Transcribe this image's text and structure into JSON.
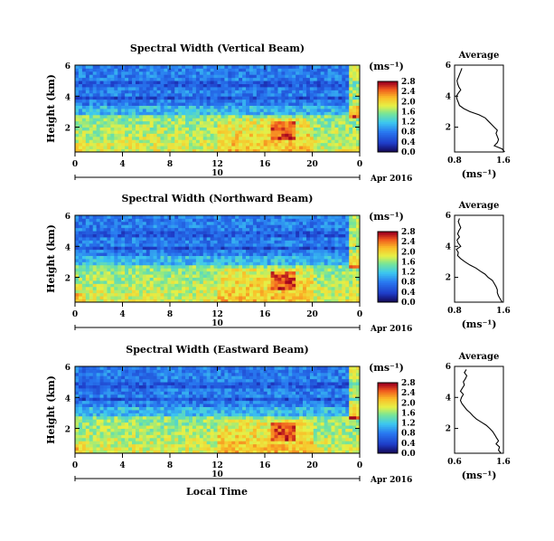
{
  "figure": {
    "common_xlabel": "Local Time",
    "date_label": "Apr 2016"
  },
  "chart_data": [
    {
      "type": "heatmap",
      "title": "Spectral Width (Vertical Beam)",
      "ylabel": "Height (km)",
      "xlabel": "",
      "x_range": [
        0,
        24
      ],
      "x_ticks": [
        "0",
        "4",
        "8",
        "12",
        "16",
        "20",
        "0"
      ],
      "day_label": "10",
      "y_range": [
        0.4,
        6.0
      ],
      "y_ticks": [
        "6",
        "4",
        "2"
      ],
      "colorbar": {
        "unit": "(ms⁻¹)",
        "range": [
          0.0,
          2.8
        ],
        "ticks": [
          "2.8",
          "2.4",
          "2.0",
          "1.6",
          "1.2",
          "0.8",
          "0.4",
          "0.0"
        ]
      },
      "average_profile": {
        "title": "Average",
        "xlabel": "(ms⁻¹)",
        "x_range": [
          0.8,
          1.6
        ],
        "x_ticks": [
          "0.8",
          "1.6"
        ],
        "y_ticks": [
          "6",
          "4",
          "2"
        ],
        "height_km": [
          0.4,
          0.6,
          0.8,
          1.0,
          1.2,
          1.4,
          1.6,
          1.8,
          2.0,
          2.2,
          2.4,
          2.6,
          2.8,
          3.0,
          3.2,
          3.4,
          3.6,
          3.8,
          4.0,
          4.2,
          4.4,
          4.6,
          4.8,
          5.0,
          5.2,
          5.4,
          5.6,
          5.8
        ],
        "width": [
          1.62,
          1.58,
          1.45,
          1.5,
          1.52,
          1.5,
          1.48,
          1.5,
          1.45,
          1.4,
          1.35,
          1.3,
          1.2,
          1.05,
          0.95,
          0.88,
          0.86,
          0.84,
          0.83,
          0.86,
          0.9,
          0.87,
          0.85,
          0.84,
          0.86,
          0.88,
          0.9,
          0.92
        ]
      }
    },
    {
      "type": "heatmap",
      "title": "Spectral Width (Northward Beam)",
      "ylabel": "Height (km)",
      "xlabel": "",
      "x_range": [
        0,
        24
      ],
      "x_ticks": [
        "0",
        "4",
        "8",
        "12",
        "16",
        "20",
        "0"
      ],
      "day_label": "10",
      "y_range": [
        0.4,
        6.0
      ],
      "y_ticks": [
        "6",
        "4",
        "2"
      ],
      "colorbar": {
        "unit": "(ms⁻¹)",
        "range": [
          0.0,
          2.8
        ],
        "ticks": [
          "2.8",
          "2.4",
          "2.0",
          "1.6",
          "1.2",
          "0.8",
          "0.4",
          "0.0"
        ]
      },
      "average_profile": {
        "title": "Average",
        "xlabel": "(ms⁻¹)",
        "x_range": [
          0.8,
          1.6
        ],
        "x_ticks": [
          "0.8",
          "1.6"
        ],
        "y_ticks": [
          "6",
          "4",
          "2"
        ],
        "height_km": [
          0.4,
          0.6,
          0.8,
          1.0,
          1.2,
          1.4,
          1.6,
          1.8,
          2.0,
          2.2,
          2.4,
          2.6,
          2.8,
          3.0,
          3.2,
          3.4,
          3.6,
          3.8,
          4.0,
          4.2,
          4.4,
          4.6,
          4.8,
          5.0,
          5.2,
          5.4,
          5.6,
          5.8
        ],
        "width": [
          1.58,
          1.55,
          1.52,
          1.5,
          1.5,
          1.48,
          1.45,
          1.42,
          1.35,
          1.3,
          1.22,
          1.15,
          1.05,
          0.97,
          0.9,
          0.85,
          0.86,
          0.83,
          0.9,
          0.86,
          0.84,
          0.88,
          0.85,
          0.87,
          0.9,
          0.88,
          0.86,
          0.88
        ]
      }
    },
    {
      "type": "heatmap",
      "title": "Spectral Width (Eastward Beam)",
      "ylabel": "Height (km)",
      "xlabel": "Local Time",
      "x_range": [
        0,
        24
      ],
      "x_ticks": [
        "0",
        "4",
        "8",
        "12",
        "16",
        "20",
        "0"
      ],
      "day_label": "10",
      "y_range": [
        0.4,
        6.0
      ],
      "y_ticks": [
        "6",
        "4",
        "2"
      ],
      "colorbar": {
        "unit": "(ms⁻¹)",
        "range": [
          0.0,
          2.8
        ],
        "ticks": [
          "2.8",
          "2.4",
          "2.0",
          "1.6",
          "1.2",
          "0.8",
          "0.4",
          "0.0"
        ]
      },
      "average_profile": {
        "title": "Average",
        "xlabel": "(ms⁻¹)",
        "x_range": [
          0.6,
          1.6
        ],
        "x_ticks": [
          "0.6",
          "1.6"
        ],
        "y_ticks": [
          "6",
          "4",
          "2"
        ],
        "height_km": [
          0.4,
          0.6,
          0.8,
          1.0,
          1.2,
          1.4,
          1.6,
          1.8,
          2.0,
          2.2,
          2.4,
          2.6,
          2.8,
          3.0,
          3.2,
          3.4,
          3.6,
          3.8,
          4.0,
          4.2,
          4.4,
          4.6,
          4.8,
          5.0,
          5.2,
          5.4,
          5.6,
          5.8
        ],
        "width": [
          1.55,
          1.5,
          1.52,
          1.45,
          1.5,
          1.46,
          1.42,
          1.38,
          1.32,
          1.25,
          1.15,
          1.05,
          0.98,
          0.92,
          0.85,
          0.8,
          0.75,
          0.72,
          0.74,
          0.78,
          0.72,
          0.76,
          0.8,
          0.78,
          0.82,
          0.85,
          0.8,
          0.84
        ]
      }
    }
  ]
}
